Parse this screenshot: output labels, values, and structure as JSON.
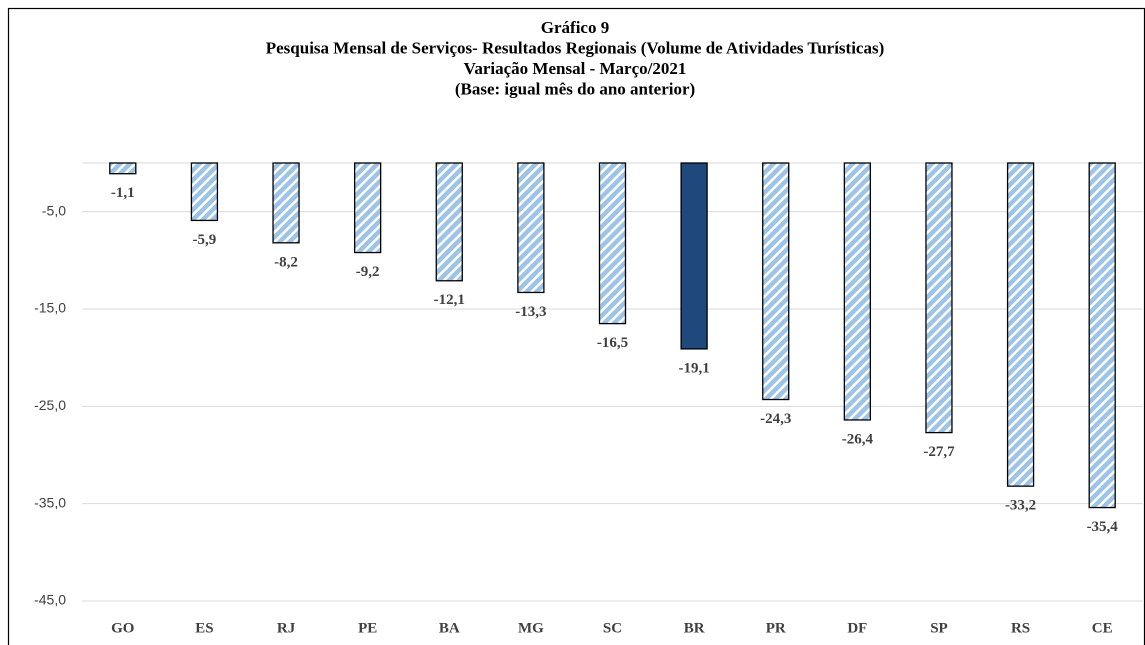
{
  "chart_data": {
    "type": "bar",
    "title": [
      "Gráfico 9",
      "Pesquisa Mensal de Serviços- Resultados Regionais (Volume de Atividades Turísticas)",
      "Variação Mensal - Março/2021",
      "(Base: igual mês do ano anterior)"
    ],
    "categories": [
      "GO",
      "ES",
      "RJ",
      "PE",
      "BA",
      "MG",
      "SC",
      "BR",
      "PR",
      "DF",
      "SP",
      "RS",
      "CE"
    ],
    "values": [
      -1.1,
      -5.9,
      -8.2,
      -9.2,
      -12.1,
      -13.3,
      -16.5,
      -19.1,
      -24.3,
      -26.4,
      -27.7,
      -33.2,
      -35.4
    ],
    "value_labels": [
      "-1,1",
      "-5,9",
      "-8,2",
      "-9,2",
      "-12,1",
      "-13,3",
      "-16,5",
      "-19,1",
      "-24,3",
      "-26,4",
      "-27,7",
      "-33,2",
      "-35,4"
    ],
    "colors": [
      "#9dc3e6",
      "#9dc3e6",
      "#9dc3e6",
      "#9dc3e6",
      "#9dc3e6",
      "#9dc3e6",
      "#9dc3e6",
      "#1f497d",
      "#9dc3e6",
      "#9dc3e6",
      "#9dc3e6",
      "#9dc3e6",
      "#9dc3e6"
    ],
    "hatched": [
      true,
      true,
      true,
      true,
      true,
      true,
      true,
      false,
      true,
      true,
      true,
      true,
      true
    ],
    "ylim": [
      -45,
      0
    ],
    "yticks": [
      {
        "value": -5,
        "label": "-5,0"
      },
      {
        "value": -15,
        "label": "-15,0"
      },
      {
        "value": -25,
        "label": "-25,0"
      },
      {
        "value": -35,
        "label": "-35,0"
      },
      {
        "value": -45,
        "label": "-45,0"
      }
    ],
    "grid": true
  }
}
